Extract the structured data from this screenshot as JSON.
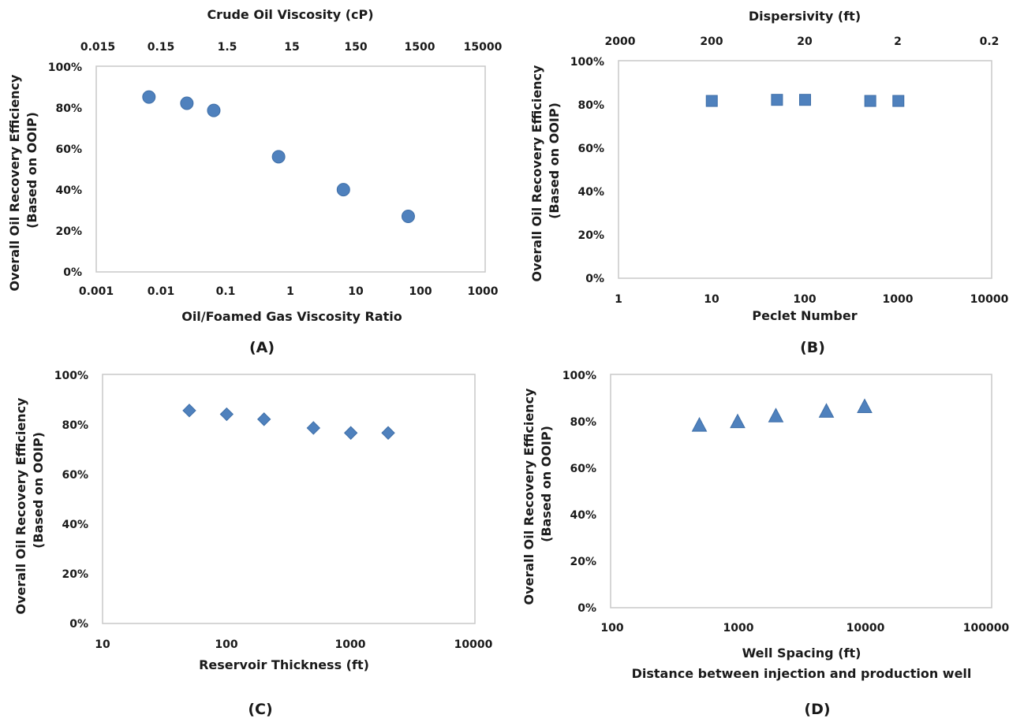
{
  "marker_color": "#4f81bd",
  "chart_data": [
    {
      "type": "scatter",
      "panel_label": "(A)",
      "marker": "circle",
      "xscale": "log",
      "xlim": [
        0.001,
        1000
      ],
      "xticks": [
        "0.001",
        "0.01",
        "0.1",
        "1",
        "10",
        "100",
        "1000"
      ],
      "xlabel": "Oil/Foamed Gas Viscosity Ratio",
      "x2label": "Crude Oil Viscosity (cP)",
      "x2ticks": [
        "0.015",
        "0.15",
        "1.5",
        "15",
        "150",
        "1500",
        "15000"
      ],
      "ylim": [
        0,
        100
      ],
      "yticks": [
        "0%",
        "20%",
        "40%",
        "60%",
        "80%",
        "100%"
      ],
      "ylabel": [
        "Overall Oil Recovery Efficiency",
        "(Based on OOIP)"
      ],
      "points": [
        {
          "x": 0.0065,
          "y": 85
        },
        {
          "x": 0.025,
          "y": 82
        },
        {
          "x": 0.065,
          "y": 78.5
        },
        {
          "x": 0.65,
          "y": 56
        },
        {
          "x": 6.5,
          "y": 40
        },
        {
          "x": 65,
          "y": 27
        }
      ]
    },
    {
      "type": "scatter",
      "panel_label": "(B)",
      "marker": "square",
      "xscale": "log",
      "xlim": [
        1,
        10000
      ],
      "xticks": [
        "1",
        "10",
        "100",
        "1000",
        "10000"
      ],
      "xlabel": "Peclet Number",
      "x2label": "Dispersivity (ft)",
      "x2ticks": [
        "2000",
        "200",
        "20",
        "2",
        "0.2"
      ],
      "ylim": [
        0,
        100
      ],
      "yticks": [
        "0%",
        "20%",
        "40%",
        "60%",
        "80%",
        "100%"
      ],
      "ylabel": [
        "Overall Oil Recovery Efficiency",
        "(Based on OOIP)"
      ],
      "points": [
        {
          "x": 10,
          "y": 81.5
        },
        {
          "x": 50,
          "y": 82
        },
        {
          "x": 100,
          "y": 82
        },
        {
          "x": 500,
          "y": 81.5
        },
        {
          "x": 1000,
          "y": 81.5
        }
      ]
    },
    {
      "type": "scatter",
      "panel_label": "(C)",
      "marker": "diamond",
      "xscale": "log",
      "xlim": [
        10,
        10000
      ],
      "xticks": [
        "10",
        "100",
        "1000",
        "10000"
      ],
      "xlabel": "Reservoir Thickness (ft)",
      "ylim": [
        0,
        100
      ],
      "yticks": [
        "0%",
        "20%",
        "40%",
        "60%",
        "80%",
        "100%"
      ],
      "ylabel": [
        "Overall Oil Recovery Efficiency",
        "(Based on OOIP)"
      ],
      "points": [
        {
          "x": 50,
          "y": 85.5
        },
        {
          "x": 100,
          "y": 84
        },
        {
          "x": 200,
          "y": 82
        },
        {
          "x": 500,
          "y": 78.5
        },
        {
          "x": 1000,
          "y": 76.5
        },
        {
          "x": 2000,
          "y": 76.5
        }
      ]
    },
    {
      "type": "scatter",
      "panel_label": "(D)",
      "marker": "triangle",
      "xscale": "log",
      "xlim": [
        100,
        100000
      ],
      "xticks": [
        "100",
        "1000",
        "10000",
        "100000"
      ],
      "xlabel": "Well Spacing (ft)",
      "xlabel2": "Distance between injection and production well",
      "ylim": [
        0,
        100
      ],
      "yticks": [
        "0%",
        "20%",
        "40%",
        "60%",
        "80%",
        "100%"
      ],
      "ylabel": [
        "Overall Oil Recovery Efficiency",
        "(Based on OOIP)"
      ],
      "points": [
        {
          "x": 500,
          "y": 78
        },
        {
          "x": 1000,
          "y": 79.5
        },
        {
          "x": 2000,
          "y": 82
        },
        {
          "x": 5000,
          "y": 84
        },
        {
          "x": 10000,
          "y": 86
        }
      ]
    }
  ]
}
